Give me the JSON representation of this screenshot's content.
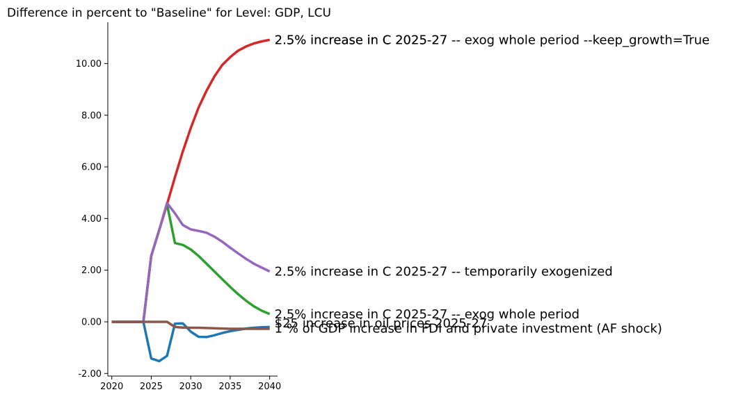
{
  "chart_data": {
    "type": "line",
    "title": "Difference in percent to \"Baseline\" for Level: GDP, LCU",
    "xlabel": "",
    "ylabel": "",
    "xlim": [
      2019.5,
      2041
    ],
    "ylim": [
      -2.1,
      11.6
    ],
    "xticks": [
      2020,
      2025,
      2030,
      2035,
      2040
    ],
    "xtick_labels": [
      "2020",
      "2025",
      "2030",
      "2035",
      "2040"
    ],
    "yticks": [
      -2,
      0,
      2,
      4,
      6,
      8,
      10
    ],
    "ytick_labels": [
      "-2.00",
      "0.00",
      "2.00",
      "4.00",
      "6.00",
      "8.00",
      "10.00"
    ],
    "grid": false,
    "legend": "none",
    "x": [
      2020,
      2021,
      2022,
      2023,
      2024,
      2025,
      2026,
      2027,
      2028,
      2029,
      2030,
      2031,
      2032,
      2033,
      2034,
      2035,
      2036,
      2037,
      2038,
      2039,
      2040
    ],
    "series": [
      {
        "name": "$25 increase in oil prices 2025-27",
        "color": "#1f77b4",
        "values": [
          0,
          0,
          0,
          0,
          0,
          -1.42,
          -1.52,
          -1.32,
          -0.07,
          -0.06,
          -0.38,
          -0.58,
          -0.59,
          -0.52,
          -0.43,
          -0.36,
          -0.31,
          -0.26,
          -0.23,
          -0.21,
          -0.2
        ]
      },
      {
        "name": "2.5% increase in C 2025-27 -- exog whole period",
        "color": "#2ca02c",
        "values": [
          0,
          0,
          0,
          0,
          0,
          2.55,
          3.55,
          4.55,
          3.05,
          2.98,
          2.8,
          2.55,
          2.25,
          1.95,
          1.65,
          1.35,
          1.07,
          0.82,
          0.6,
          0.43,
          0.3
        ]
      },
      {
        "name": "2.5% increase in C 2025-27 -- exog whole period --keep_growth=True",
        "color": "#d62728",
        "values": [
          0,
          0,
          0,
          0,
          0,
          2.55,
          3.55,
          4.55,
          5.6,
          6.6,
          7.5,
          8.3,
          8.95,
          9.5,
          9.95,
          10.25,
          10.5,
          10.66,
          10.78,
          10.86,
          10.92
        ]
      },
      {
        "name": "2.5% increase in C 2025-27 -- temporarily exogenized",
        "color": "#9467bd",
        "values": [
          0,
          0,
          0,
          0,
          0,
          2.55,
          3.55,
          4.6,
          4.2,
          3.75,
          3.58,
          3.52,
          3.45,
          3.3,
          3.1,
          2.87,
          2.65,
          2.44,
          2.25,
          2.1,
          1.95
        ]
      },
      {
        "name": "1 % of GDP increase in FDI and private investment (AF shock)",
        "color": "#8c564b",
        "values": [
          0,
          0,
          0,
          0,
          0,
          0,
          0,
          0,
          -0.2,
          -0.22,
          -0.23,
          -0.23,
          -0.24,
          -0.25,
          -0.26,
          -0.27,
          -0.27,
          -0.27,
          -0.27,
          -0.27,
          -0.27
        ]
      }
    ],
    "annotations": [
      {
        "text": "2.5% increase in C 2025-27 -- exog whole period --keep_growth=True",
        "x": 2040,
        "y": 10.92
      },
      {
        "text": "2.5% increase in C 2025-27",
        "x": 2040,
        "y": 10.92
      },
      {
        "text": "2.5% increase in C 2025-27 -- temporarily exogenized",
        "x": 2040,
        "y": 1.95
      },
      {
        "text": "2.5% increase in C 2025-27 -- exog whole period",
        "x": 2040,
        "y": 0.3
      },
      {
        "text": "$25 increase in oil prices 2025-27",
        "x": 2040,
        "y": -0.05
      },
      {
        "text": "1 % of GDP increase in FDI and private investment (AF shock)",
        "x": 2040,
        "y": -0.25
      }
    ]
  }
}
